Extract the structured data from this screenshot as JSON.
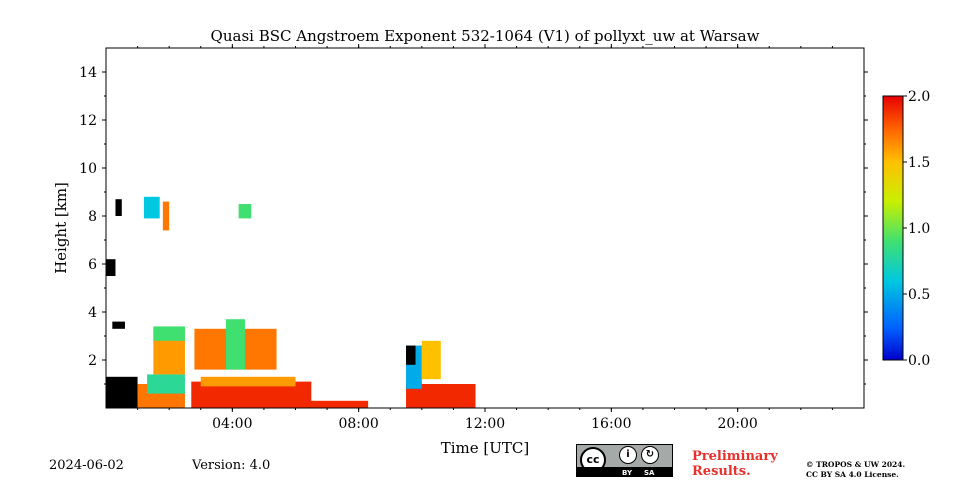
{
  "chart_data": {
    "type": "heatmap",
    "title": "Quasi BSC Angstroem Exponent 532-1064 (V1) of pollyxt_uw at Warsaw",
    "xlabel": "Time [UTC]",
    "ylabel": "Height [km]",
    "xlim_hours": [
      0,
      24
    ],
    "ylim_km": [
      0,
      15
    ],
    "xticks": [
      {
        "value": 4,
        "label": "04:00"
      },
      {
        "value": 8,
        "label": "08:00"
      },
      {
        "value": 12,
        "label": "12:00"
      },
      {
        "value": 16,
        "label": "16:00"
      },
      {
        "value": 20,
        "label": "20:00"
      }
    ],
    "yticks": [
      {
        "value": 2,
        "label": "2"
      },
      {
        "value": 4,
        "label": "4"
      },
      {
        "value": 6,
        "label": "6"
      },
      {
        "value": 8,
        "label": "8"
      },
      {
        "value": 10,
        "label": "10"
      },
      {
        "value": 12,
        "label": "12"
      },
      {
        "value": 14,
        "label": "14"
      }
    ],
    "colorbar": {
      "range": [
        0.0,
        2.0
      ],
      "ticks": [
        {
          "value": 0.0,
          "label": "0.0"
        },
        {
          "value": 0.5,
          "label": "0.5"
        },
        {
          "value": 1.0,
          "label": "1.0"
        },
        {
          "value": 1.5,
          "label": "1.5"
        },
        {
          "value": 2.0,
          "label": "2.0"
        }
      ],
      "colormap": "jet"
    },
    "regions": [
      {
        "t0": 0.0,
        "t1": 1.7,
        "h0": 0.0,
        "h1": 0.5,
        "value": 1.9
      },
      {
        "t0": 0.0,
        "t1": 1.0,
        "h0": 0.0,
        "h1": 1.3,
        "value": -1
      },
      {
        "t0": 1.0,
        "t1": 2.5,
        "h0": 0.0,
        "h1": 1.0,
        "value": 1.7
      },
      {
        "t0": 1.3,
        "t1": 2.5,
        "h0": 0.6,
        "h1": 1.4,
        "value": 0.8
      },
      {
        "t0": 2.7,
        "t1": 6.5,
        "h0": 0.0,
        "h1": 1.1,
        "value": 1.9
      },
      {
        "t0": 3.0,
        "t1": 6.0,
        "h0": 0.9,
        "h1": 1.3,
        "value": 1.6
      },
      {
        "t0": 1.5,
        "t1": 2.5,
        "h0": 1.4,
        "h1": 3.3,
        "value": 1.6
      },
      {
        "t0": 1.5,
        "t1": 2.5,
        "h0": 2.8,
        "h1": 3.4,
        "value": 0.9
      },
      {
        "t0": 2.8,
        "t1": 5.4,
        "h0": 1.6,
        "h1": 3.3,
        "value": 1.7
      },
      {
        "t0": 3.8,
        "t1": 4.4,
        "h0": 1.6,
        "h1": 3.7,
        "value": 0.9
      },
      {
        "t0": 5.5,
        "t1": 8.3,
        "h0": 0.0,
        "h1": 0.3,
        "value": 1.9
      },
      {
        "t0": 9.5,
        "t1": 11.7,
        "h0": 0.0,
        "h1": 1.0,
        "value": 1.9
      },
      {
        "t0": 9.5,
        "t1": 10.0,
        "h0": 0.8,
        "h1": 2.6,
        "value": 0.5
      },
      {
        "t0": 9.5,
        "t1": 9.8,
        "h0": 1.8,
        "h1": 2.6,
        "value": -1
      },
      {
        "t0": 10.0,
        "t1": 10.6,
        "h0": 1.2,
        "h1": 2.8,
        "value": 1.5
      },
      {
        "t0": 1.2,
        "t1": 1.7,
        "h0": 7.9,
        "h1": 8.8,
        "value": 0.6
      },
      {
        "t0": 1.8,
        "t1": 2.0,
        "h0": 7.4,
        "h1": 8.6,
        "value": 1.7
      },
      {
        "t0": 4.2,
        "t1": 4.6,
        "h0": 7.9,
        "h1": 8.5,
        "value": 0.9
      },
      {
        "t0": 0.3,
        "t1": 0.5,
        "h0": 8.0,
        "h1": 8.7,
        "value": -1
      },
      {
        "t0": 0.0,
        "t1": 0.3,
        "h0": 5.5,
        "h1": 6.2,
        "value": -1
      },
      {
        "t0": 0.2,
        "t1": 0.6,
        "h0": 3.3,
        "h1": 3.6,
        "value": -1
      }
    ]
  },
  "footer": {
    "date": "2024-06-02",
    "version": "Version: 4.0",
    "preliminary_line1": "Preliminary",
    "preliminary_line2": "Results.",
    "license_line1": "© TROPOS & UW 2024.",
    "license_line2": "CC BY SA 4.0 License.",
    "cc_badge": {
      "cc": "cc",
      "by": "BY",
      "sa": "SA",
      "by_icon": "person-icon",
      "sa_icon": "share-alike-icon"
    }
  }
}
